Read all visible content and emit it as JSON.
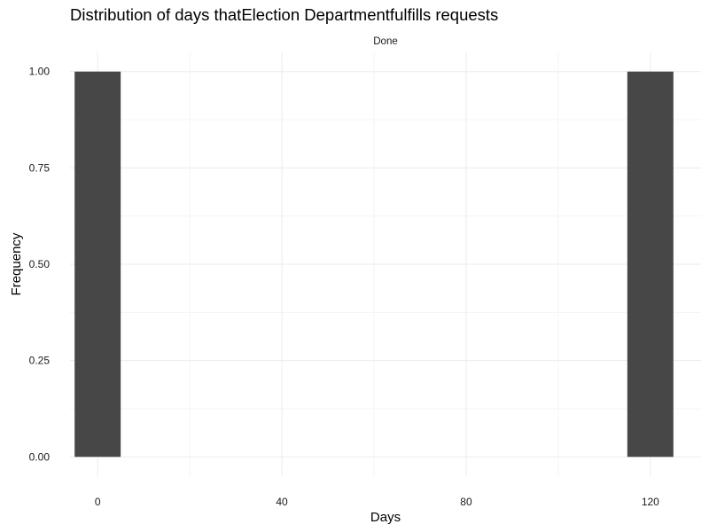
{
  "chart_data": {
    "type": "bar",
    "title": "Distribution of days thatElection Departmentfulfills requests",
    "facet_label": "Done",
    "xlabel": "Days",
    "ylabel": "Frequency",
    "bins": [
      {
        "x": 0,
        "width": 10,
        "value": 1
      },
      {
        "x": 120,
        "width": 10,
        "value": 1
      }
    ],
    "xlim": [
      -6,
      131
    ],
    "ylim": [
      -0.05,
      1.05
    ],
    "x_ticks": [
      0,
      40,
      80,
      120
    ],
    "x_tick_labels": [
      "0",
      "40",
      "80",
      "120"
    ],
    "x_minor_ticks": [
      20,
      60,
      100
    ],
    "y_ticks": [
      0,
      0.25,
      0.5,
      0.75,
      1
    ],
    "y_tick_labels": [
      "0.00",
      "0.25",
      "0.50",
      "0.75",
      "1.00"
    ],
    "y_minor_ticks": [
      0.125,
      0.375,
      0.625,
      0.875
    ],
    "bar_color": "#474747",
    "grid": true,
    "legend": "none"
  }
}
